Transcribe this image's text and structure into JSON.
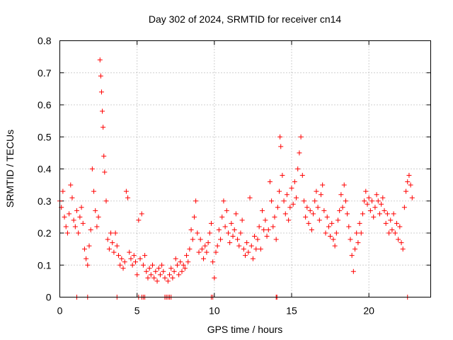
{
  "chart_data": {
    "type": "scatter",
    "title": "Day 302 of 2024, SRMTID for receiver cn14",
    "xlabel": "GPS time / hours",
    "ylabel": "SRMTID / TECUs",
    "xlim": [
      0,
      24
    ],
    "ylim": [
      0,
      0.8
    ],
    "xticks": [
      0,
      5,
      10,
      15,
      20
    ],
    "xtick_labels": [
      "0",
      "5",
      "10",
      "15",
      "20"
    ],
    "yticks": [
      0,
      0.1,
      0.2,
      0.3,
      0.4,
      0.5,
      0.6,
      0.7,
      0.8
    ],
    "ytick_labels": [
      "0",
      "0.1",
      "0.2",
      "0.3",
      "0.4",
      "0.5",
      "0.6",
      "0.7",
      "0.8"
    ],
    "grid": true,
    "marker": "+",
    "marker_color": "#ff0000",
    "series": [
      {
        "name": "SRMTID",
        "points": [
          [
            0.0,
            0.3
          ],
          [
            0.1,
            0.28
          ],
          [
            0.2,
            0.33
          ],
          [
            0.3,
            0.25
          ],
          [
            0.4,
            0.22
          ],
          [
            0.5,
            0.2
          ],
          [
            0.6,
            0.26
          ],
          [
            0.7,
            0.35
          ],
          [
            0.8,
            0.31
          ],
          [
            0.9,
            0.24
          ],
          [
            1.0,
            0.22
          ],
          [
            1.1,
            0.27
          ],
          [
            1.2,
            0.2
          ],
          [
            1.3,
            0.25
          ],
          [
            1.4,
            0.28
          ],
          [
            1.5,
            0.23
          ],
          [
            1.6,
            0.15
          ],
          [
            1.7,
            0.12
          ],
          [
            1.8,
            0.1
          ],
          [
            1.9,
            0.16
          ],
          [
            2.0,
            0.21
          ],
          [
            2.1,
            0.4
          ],
          [
            2.2,
            0.33
          ],
          [
            2.3,
            0.27
          ],
          [
            2.4,
            0.22
          ],
          [
            2.5,
            0.25
          ],
          [
            2.6,
            0.74
          ],
          [
            2.65,
            0.69
          ],
          [
            2.7,
            0.64
          ],
          [
            2.75,
            0.58
          ],
          [
            2.8,
            0.53
          ],
          [
            2.85,
            0.44
          ],
          [
            2.9,
            0.39
          ],
          [
            3.0,
            0.3
          ],
          [
            3.1,
            0.18
          ],
          [
            3.2,
            0.15
          ],
          [
            3.3,
            0.2
          ],
          [
            3.4,
            0.17
          ],
          [
            3.5,
            0.14
          ],
          [
            3.6,
            0.2
          ],
          [
            3.7,
            0.16
          ],
          [
            3.8,
            0.13
          ],
          [
            3.9,
            0.1
          ],
          [
            4.0,
            0.12
          ],
          [
            4.1,
            0.09
          ],
          [
            4.2,
            0.11
          ],
          [
            4.3,
            0.33
          ],
          [
            4.4,
            0.31
          ],
          [
            4.5,
            0.14
          ],
          [
            4.6,
            0.12
          ],
          [
            4.7,
            0.1
          ],
          [
            4.8,
            0.13
          ],
          [
            4.9,
            0.11
          ],
          [
            5.0,
            0.07
          ],
          [
            5.1,
            0.24
          ],
          [
            5.2,
            0.12
          ],
          [
            5.3,
            0.26
          ],
          [
            5.4,
            0.1
          ],
          [
            5.5,
            0.13
          ],
          [
            5.6,
            0.08
          ],
          [
            5.7,
            0.06
          ],
          [
            5.8,
            0.09
          ],
          [
            5.9,
            0.07
          ],
          [
            6.0,
            0.1
          ],
          [
            6.1,
            0.06
          ],
          [
            6.2,
            0.08
          ],
          [
            6.3,
            0.05
          ],
          [
            6.4,
            0.09
          ],
          [
            6.5,
            0.07
          ],
          [
            6.6,
            0.1
          ],
          [
            6.7,
            0.08
          ],
          [
            6.8,
            0.06
          ],
          [
            7.0,
            0.05
          ],
          [
            7.1,
            0.07
          ],
          [
            7.2,
            0.09
          ],
          [
            7.3,
            0.06
          ],
          [
            7.4,
            0.08
          ],
          [
            7.5,
            0.12
          ],
          [
            7.6,
            0.1
          ],
          [
            7.7,
            0.07
          ],
          [
            7.8,
            0.11
          ],
          [
            7.9,
            0.08
          ],
          [
            8.0,
            0.1
          ],
          [
            8.1,
            0.09
          ],
          [
            8.2,
            0.13
          ],
          [
            8.3,
            0.11
          ],
          [
            8.4,
            0.15
          ],
          [
            8.5,
            0.21
          ],
          [
            8.6,
            0.18
          ],
          [
            8.7,
            0.25
          ],
          [
            8.8,
            0.3
          ],
          [
            8.9,
            0.2
          ],
          [
            9.0,
            0.14
          ],
          [
            9.1,
            0.18
          ],
          [
            9.2,
            0.15
          ],
          [
            9.3,
            0.12
          ],
          [
            9.4,
            0.16
          ],
          [
            9.5,
            0.14
          ],
          [
            9.6,
            0.17
          ],
          [
            9.7,
            0.2
          ],
          [
            9.8,
            0.23
          ],
          [
            9.9,
            0.11
          ],
          [
            10.0,
            0.06
          ],
          [
            10.1,
            0.14
          ],
          [
            10.2,
            0.16
          ],
          [
            10.3,
            0.21
          ],
          [
            10.4,
            0.18
          ],
          [
            10.5,
            0.25
          ],
          [
            10.6,
            0.3
          ],
          [
            10.7,
            0.22
          ],
          [
            10.8,
            0.27
          ],
          [
            10.9,
            0.2
          ],
          [
            11.0,
            0.17
          ],
          [
            11.1,
            0.23
          ],
          [
            11.2,
            0.19
          ],
          [
            11.3,
            0.21
          ],
          [
            11.4,
            0.26
          ],
          [
            11.5,
            0.18
          ],
          [
            11.6,
            0.16
          ],
          [
            11.7,
            0.2
          ],
          [
            11.8,
            0.24
          ],
          [
            11.9,
            0.15
          ],
          [
            12.0,
            0.13
          ],
          [
            12.1,
            0.17
          ],
          [
            12.2,
            0.14
          ],
          [
            12.3,
            0.31
          ],
          [
            12.4,
            0.16
          ],
          [
            12.5,
            0.12
          ],
          [
            12.6,
            0.19
          ],
          [
            12.7,
            0.15
          ],
          [
            12.8,
            0.18
          ],
          [
            12.9,
            0.22
          ],
          [
            13.0,
            0.15
          ],
          [
            13.1,
            0.27
          ],
          [
            13.2,
            0.21
          ],
          [
            13.3,
            0.24
          ],
          [
            13.4,
            0.19
          ],
          [
            13.5,
            0.21
          ],
          [
            13.6,
            0.36
          ],
          [
            13.7,
            0.3
          ],
          [
            13.8,
            0.22
          ],
          [
            13.9,
            0.25
          ],
          [
            14.0,
            0.18
          ],
          [
            14.1,
            0.28
          ],
          [
            14.2,
            0.33
          ],
          [
            14.25,
            0.5
          ],
          [
            14.3,
            0.47
          ],
          [
            14.4,
            0.38
          ],
          [
            14.5,
            0.3
          ],
          [
            14.6,
            0.26
          ],
          [
            14.7,
            0.32
          ],
          [
            14.8,
            0.24
          ],
          [
            14.9,
            0.28
          ],
          [
            15.0,
            0.34
          ],
          [
            15.1,
            0.29
          ],
          [
            15.2,
            0.36
          ],
          [
            15.3,
            0.31
          ],
          [
            15.4,
            0.4
          ],
          [
            15.5,
            0.45
          ],
          [
            15.6,
            0.5
          ],
          [
            15.7,
            0.38
          ],
          [
            15.8,
            0.3
          ],
          [
            15.9,
            0.25
          ],
          [
            16.0,
            0.28
          ],
          [
            16.1,
            0.23
          ],
          [
            16.2,
            0.27
          ],
          [
            16.3,
            0.21
          ],
          [
            16.4,
            0.26
          ],
          [
            16.5,
            0.3
          ],
          [
            16.6,
            0.33
          ],
          [
            16.7,
            0.28
          ],
          [
            16.8,
            0.24
          ],
          [
            16.9,
            0.32
          ],
          [
            17.0,
            0.35
          ],
          [
            17.1,
            0.27
          ],
          [
            17.2,
            0.2
          ],
          [
            17.3,
            0.25
          ],
          [
            17.4,
            0.22
          ],
          [
            17.5,
            0.19
          ],
          [
            17.6,
            0.23
          ],
          [
            17.7,
            0.18
          ],
          [
            17.8,
            0.16
          ],
          [
            17.9,
            0.2
          ],
          [
            18.0,
            0.24
          ],
          [
            18.1,
            0.27
          ],
          [
            18.2,
            0.32
          ],
          [
            18.3,
            0.28
          ],
          [
            18.4,
            0.35
          ],
          [
            18.5,
            0.3
          ],
          [
            18.6,
            0.26
          ],
          [
            18.7,
            0.22
          ],
          [
            18.8,
            0.18
          ],
          [
            18.9,
            0.13
          ],
          [
            19.0,
            0.08
          ],
          [
            19.1,
            0.15
          ],
          [
            19.2,
            0.2
          ],
          [
            19.3,
            0.17
          ],
          [
            19.4,
            0.23
          ],
          [
            19.5,
            0.2
          ],
          [
            19.6,
            0.26
          ],
          [
            19.7,
            0.3
          ],
          [
            19.8,
            0.33
          ],
          [
            19.9,
            0.29
          ],
          [
            20.0,
            0.31
          ],
          [
            20.1,
            0.27
          ],
          [
            20.2,
            0.3
          ],
          [
            20.3,
            0.25
          ],
          [
            20.4,
            0.28
          ],
          [
            20.5,
            0.32
          ],
          [
            20.6,
            0.3
          ],
          [
            20.7,
            0.26
          ],
          [
            20.8,
            0.29
          ],
          [
            20.9,
            0.31
          ],
          [
            21.0,
            0.27
          ],
          [
            21.1,
            0.23
          ],
          [
            21.2,
            0.26
          ],
          [
            21.3,
            0.2
          ],
          [
            21.4,
            0.24
          ],
          [
            21.5,
            0.21
          ],
          [
            21.6,
            0.26
          ],
          [
            21.7,
            0.2
          ],
          [
            21.8,
            0.23
          ],
          [
            21.9,
            0.18
          ],
          [
            22.0,
            0.22
          ],
          [
            22.1,
            0.17
          ],
          [
            22.2,
            0.15
          ],
          [
            22.3,
            0.28
          ],
          [
            22.4,
            0.33
          ],
          [
            22.5,
            0.36
          ],
          [
            22.6,
            0.38
          ],
          [
            22.7,
            0.35
          ],
          [
            22.8,
            0.31
          ],
          [
            1.1,
            0.0
          ],
          [
            1.8,
            0.0
          ],
          [
            3.7,
            0.0
          ],
          [
            5.1,
            0.0
          ],
          [
            5.3,
            0.0
          ],
          [
            5.4,
            0.0
          ],
          [
            5.5,
            0.0
          ],
          [
            6.8,
            0.0
          ],
          [
            6.9,
            0.0
          ],
          [
            7.0,
            0.0
          ],
          [
            7.1,
            0.0
          ],
          [
            7.2,
            0.0
          ],
          [
            9.8,
            0.0
          ],
          [
            9.9,
            0.0
          ],
          [
            14.0,
            0.0
          ],
          [
            14.05,
            0.0
          ],
          [
            22.5,
            0.0
          ]
        ]
      }
    ]
  }
}
